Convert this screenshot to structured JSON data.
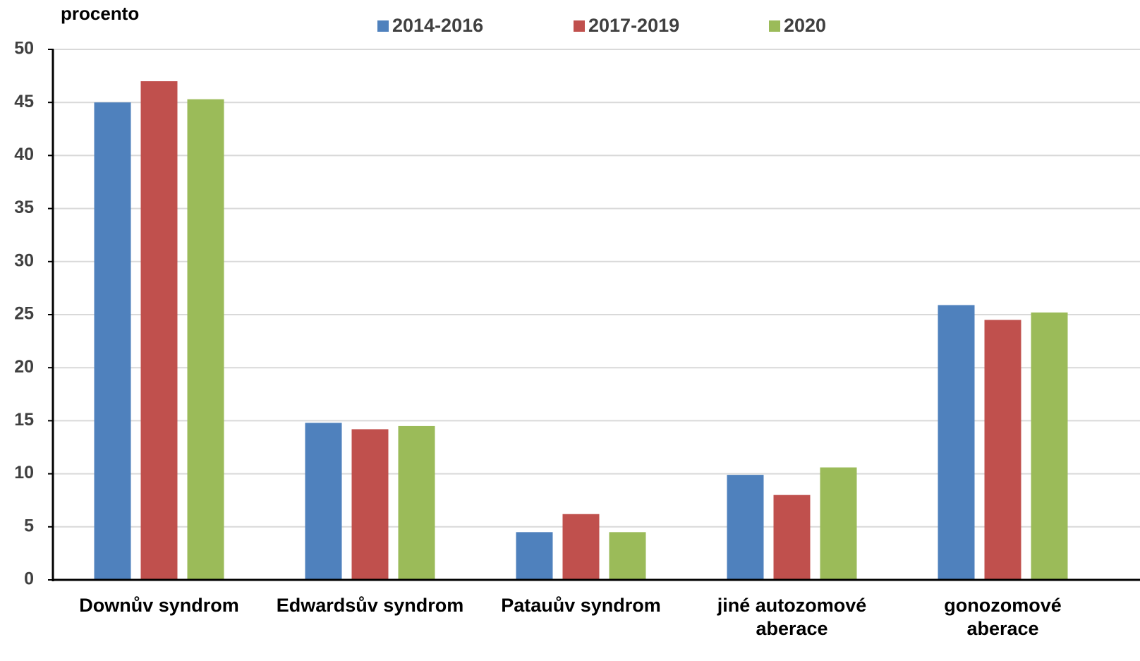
{
  "chart_data": {
    "type": "bar",
    "y_label": "procento",
    "categories": [
      "Downův syndrom",
      "Edwardsův syndrom",
      "Patauův syndrom",
      "jiné autozomové aberace",
      "gonozomové aberace"
    ],
    "series": [
      {
        "name": "2014-2016",
        "color": "#4f81bd",
        "values": [
          45.0,
          14.8,
          4.5,
          9.9,
          25.9
        ]
      },
      {
        "name": "2017-2019",
        "color": "#c0504d",
        "values": [
          47.0,
          14.2,
          6.2,
          8.0,
          24.5
        ]
      },
      {
        "name": "2020",
        "color": "#9bbb59",
        "values": [
          45.3,
          14.5,
          4.5,
          10.6,
          25.2
        ]
      }
    ],
    "ylim": [
      0,
      50
    ],
    "yticks": [
      0,
      5,
      10,
      15,
      20,
      25,
      30,
      35,
      40,
      45,
      50
    ],
    "grid": true
  }
}
